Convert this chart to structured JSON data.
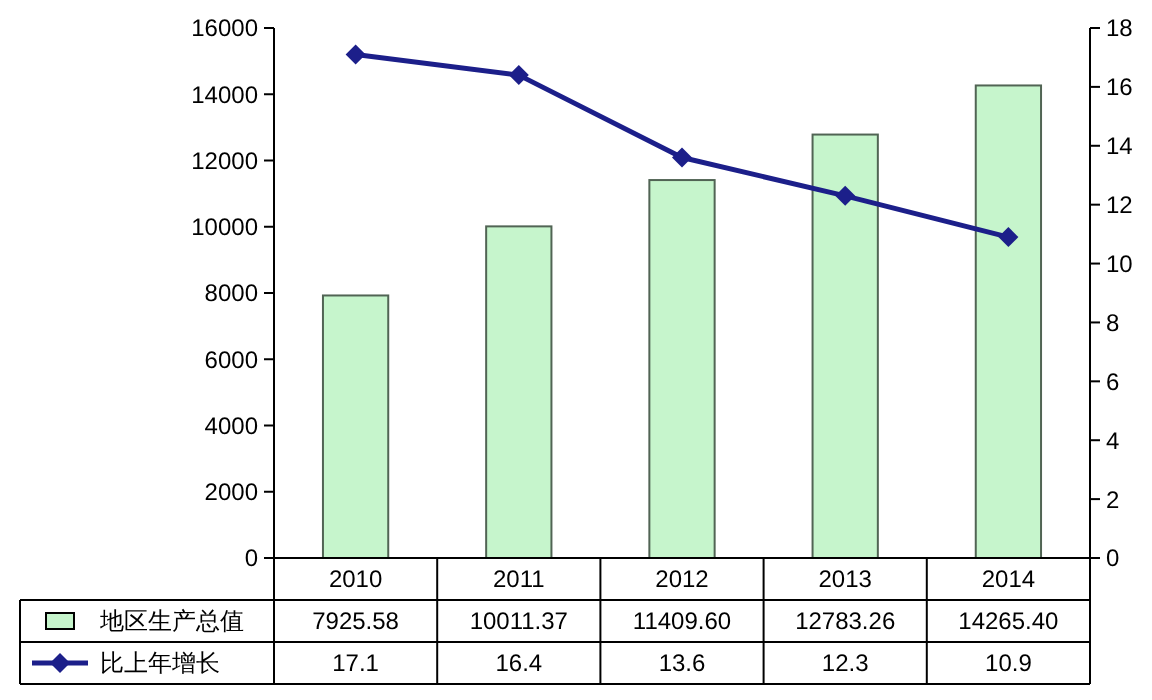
{
  "chart_data": {
    "type": "bar",
    "categories": [
      "2010",
      "2011",
      "2012",
      "2013",
      "2014"
    ],
    "series": [
      {
        "name": "地区生产总值",
        "color": "#c6f5cc",
        "values": [
          7925.58,
          10011.37,
          11409.6,
          12783.26,
          14265.4
        ],
        "value_labels": [
          "7925.58",
          "10011.37",
          "11409.60",
          "12783.26",
          "14265.40"
        ]
      },
      {
        "name": "比上年增长",
        "type": "line",
        "axis": "y2",
        "marker": "diamond",
        "color": "#1c1f8a",
        "values": [
          17.1,
          16.4,
          13.6,
          12.3,
          10.9
        ],
        "value_labels": [
          "17.1",
          "16.4",
          "13.6",
          "12.3",
          "10.9"
        ]
      }
    ],
    "ylim": [
      0,
      16000
    ],
    "yticks": [
      0,
      2000,
      4000,
      6000,
      8000,
      10000,
      12000,
      14000,
      16000
    ],
    "y2lim": [
      0,
      18
    ],
    "y2ticks": [
      0,
      2,
      4,
      6,
      8,
      10,
      12,
      14,
      16,
      18
    ],
    "legend": "bottom"
  }
}
